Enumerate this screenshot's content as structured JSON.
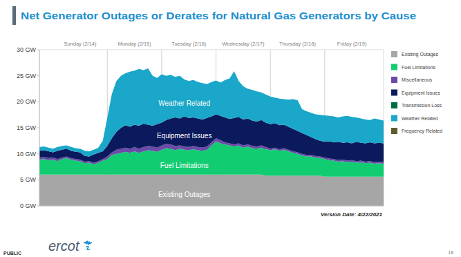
{
  "chart_data": {
    "type": "area",
    "title": "Net Generator Outages or Derates for Natural Gas Generators by Cause",
    "categories": [
      null,
      null,
      null,
      null,
      null,
      null,
      null,
      null,
      null,
      "Sunday (2/14)",
      null,
      null,
      null,
      null,
      null,
      null,
      null,
      null,
      null,
      null,
      null,
      "Monday (2/15)",
      null,
      null,
      null,
      null,
      null,
      null,
      null,
      null,
      null,
      null,
      null,
      "Tuesday (2/16)",
      null,
      null,
      null,
      null,
      null,
      null,
      null,
      null,
      null,
      null,
      null,
      "Wednesday (2/17)",
      null,
      null,
      null,
      null,
      null,
      null,
      null,
      null,
      null,
      null,
      null,
      "Thursday (2/18)",
      null,
      null,
      null,
      null,
      null,
      null,
      null,
      null,
      null,
      null,
      null,
      "Friday (2/19)",
      null,
      null,
      null,
      null,
      null,
      null,
      null
    ],
    "series": [
      {
        "name": "Existing Outages",
        "color": "#a6a6a6",
        "values": [
          6,
          6,
          6,
          6,
          6,
          6,
          6,
          6,
          6,
          6,
          6,
          6,
          6,
          6,
          6,
          6,
          6,
          6,
          6,
          6,
          6,
          6,
          6,
          6,
          6,
          6,
          6,
          6,
          6,
          6,
          6,
          6,
          6,
          6,
          6,
          6,
          6,
          6,
          6,
          6,
          6,
          6,
          6,
          6,
          6,
          6,
          6,
          6,
          6,
          6,
          5.8,
          5.8,
          5.8,
          5.8,
          5.8,
          5.8,
          5.8,
          5.8,
          5.8,
          5.8,
          5.8,
          5.8,
          5.8,
          5.6,
          5.6,
          5.6,
          5.6,
          5.6,
          5.6,
          5.6,
          5.6,
          5.6,
          5.6,
          5.6,
          5.6,
          5.6,
          5.6
        ]
      },
      {
        "name": "Fuel Limitations",
        "color": "#12cc72",
        "values": [
          2.9,
          3.0,
          2.8,
          2.9,
          2.6,
          3.0,
          3.2,
          2.9,
          2.7,
          2.6,
          2.2,
          2.3,
          2.0,
          2.3,
          2.7,
          3.0,
          3.8,
          4.0,
          4.2,
          4.4,
          4.2,
          4.5,
          4.2,
          4.5,
          4.7,
          4.6,
          4.4,
          4.8,
          5.1,
          5.0,
          4.7,
          5.0,
          4.8,
          4.7,
          4.9,
          4.7,
          4.6,
          4.8,
          5.6,
          6.4,
          6.0,
          5.8,
          5.6,
          5.4,
          5.6,
          5.2,
          5.4,
          5.1,
          5.0,
          5.2,
          5.1,
          4.9,
          5.1,
          4.8,
          5.0,
          4.7,
          4.4,
          4.2,
          3.9,
          3.7,
          3.7,
          3.5,
          3.4,
          3.4,
          3.2,
          3.1,
          2.9,
          3.0,
          2.8,
          2.9,
          2.7,
          2.8,
          2.6,
          2.7,
          2.5,
          2.6,
          2.5
        ]
      },
      {
        "name": "Miscellaneous",
        "color": "#6b4aa8",
        "values": [
          0.4,
          0.4,
          0.4,
          0.4,
          0.4,
          0.3,
          0.3,
          0.3,
          0.3,
          0.3,
          0.3,
          0.3,
          0.3,
          0.3,
          0.3,
          0.5,
          0.5,
          0.8,
          0.8,
          0.8,
          0.8,
          0.8,
          0.8,
          0.8,
          0.8,
          0.8,
          0.8,
          0.8,
          0.8,
          0.8,
          0.8,
          0.6,
          0.6,
          0.6,
          0.6,
          0.6,
          0.6,
          0.6,
          0.6,
          0.6,
          0.6,
          0.4,
          0.4,
          0.4,
          0.4,
          0.4,
          0.4,
          0.4,
          0.4,
          0.4,
          0.4,
          0.3,
          0.3,
          0.3,
          0.3,
          0.3,
          0.3,
          0.3,
          0.3,
          0.3,
          0.3,
          0.3,
          0.3,
          0.3,
          0.3,
          0.3,
          0.3,
          0.3,
          0.3,
          0.3,
          0.3,
          0.3,
          0.3,
          0.3,
          0.3,
          0.3,
          0.3
        ]
      },
      {
        "name": "Equipment Issues",
        "color": "#0b1a5c",
        "values": [
          1.3,
          1.3,
          1.3,
          1.0,
          1.6,
          1.5,
          1.5,
          1.4,
          1.4,
          1.4,
          1.1,
          0.9,
          1.6,
          1.6,
          1.5,
          2.0,
          2.7,
          3.4,
          4.0,
          4.3,
          4.2,
          4.3,
          4.4,
          4.5,
          4.1,
          4.0,
          4.5,
          4.4,
          4.6,
          5.0,
          5.5,
          5.2,
          5.8,
          5.6,
          5.5,
          5.5,
          5.4,
          5.5,
          5.0,
          4.6,
          4.7,
          4.8,
          4.7,
          5.1,
          5.1,
          5.0,
          5.0,
          4.9,
          4.8,
          4.9,
          4.7,
          4.7,
          4.7,
          4.6,
          4.5,
          4.4,
          4.3,
          4.1,
          4.0,
          3.8,
          3.4,
          3.2,
          3.0,
          3.0,
          3.3,
          3.2,
          3.5,
          3.2,
          3.5,
          3.2,
          3.7,
          3.4,
          3.5,
          3.6,
          3.6,
          3.6,
          3.6
        ]
      },
      {
        "name": "Transmission Loss",
        "color": "#006b3c",
        "values": [
          0,
          0,
          0,
          0,
          0,
          0,
          0,
          0,
          0,
          0,
          0,
          0,
          0,
          0,
          0,
          0,
          0,
          0,
          0,
          0,
          0,
          0,
          0,
          0,
          0,
          0,
          0,
          0,
          0,
          0,
          0,
          0,
          0,
          0,
          0,
          0,
          0,
          0,
          0,
          0,
          0,
          0,
          0,
          0,
          0,
          0,
          0,
          0,
          0,
          0,
          0,
          0,
          0,
          0,
          0,
          0,
          0,
          0,
          0,
          0,
          0,
          0,
          0,
          0,
          0,
          0,
          0,
          0,
          0,
          0,
          0,
          0,
          0,
          0,
          0,
          0,
          0
        ]
      },
      {
        "name": "Weather Related",
        "color": "#1aa7c9",
        "values": [
          0.7,
          0.7,
          0.7,
          0.7,
          0.7,
          0.7,
          0.6,
          0.7,
          0.7,
          0.7,
          1.0,
          1.0,
          0.9,
          1.0,
          2.0,
          5.5,
          8.5,
          9.8,
          10.0,
          10.0,
          10.6,
          10.4,
          10.9,
          10.3,
          10.8,
          9.6,
          8.9,
          9.3,
          8.5,
          8.4,
          7.8,
          8.2,
          7.1,
          7.1,
          7.2,
          7.0,
          7.0,
          6.5,
          6.6,
          6.5,
          6.4,
          7.2,
          7.8,
          9.0,
          6.9,
          6.4,
          5.7,
          5.9,
          5.8,
          5.3,
          5.4,
          5.3,
          4.9,
          5.1,
          4.9,
          5.2,
          5.7,
          5.9,
          4.6,
          4.6,
          4.7,
          4.8,
          5.0,
          5.1,
          4.9,
          5.0,
          4.7,
          5.1,
          5.1,
          5.1,
          4.7,
          4.7,
          4.6,
          4.3,
          4.8,
          4.5,
          4.4
        ]
      },
      {
        "name": "Frequency Related",
        "color": "#5f5b2b",
        "values": [
          0,
          0,
          0,
          0,
          0,
          0,
          0,
          0,
          0,
          0,
          0,
          0,
          0,
          0,
          0,
          0,
          0,
          0,
          0,
          0,
          0,
          0,
          0,
          0,
          0,
          0,
          0,
          0,
          0,
          0,
          0,
          0,
          0,
          0,
          0,
          0,
          0,
          0,
          0,
          0,
          0,
          0,
          0,
          0,
          0,
          0,
          0,
          0,
          0,
          0,
          0,
          0,
          0,
          0,
          0,
          0,
          0,
          0,
          0,
          0,
          0,
          0,
          0,
          0,
          0,
          0,
          0,
          0,
          0,
          0,
          0,
          0,
          0,
          0,
          0,
          0,
          0
        ]
      }
    ],
    "ylim": [
      0,
      30
    ],
    "yticks": [
      {
        "value": 0,
        "label": "0 GW"
      },
      {
        "value": 5,
        "label": "5 GW"
      },
      {
        "value": 10,
        "label": "10 GW"
      },
      {
        "value": 15,
        "label": "15 GW"
      },
      {
        "value": 20,
        "label": "20 GW"
      },
      {
        "value": 25,
        "label": "25 GW"
      },
      {
        "value": 30,
        "label": "30 GW"
      }
    ],
    "stacked": true,
    "grid": false,
    "legend": "right",
    "annotations": [
      "Weather Related",
      "Equipment Issues",
      "Fuel Limitations",
      "Existing Outages"
    ]
  },
  "page": {
    "version": "Version Date: 4/22/2021",
    "classification": "PUBLIC",
    "logo": "ercot",
    "number": "18"
  }
}
